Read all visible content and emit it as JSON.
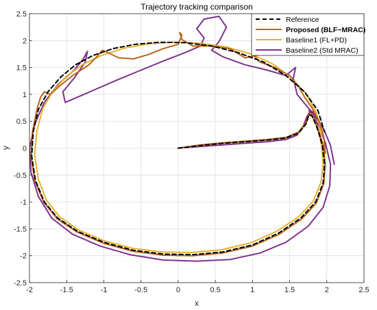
{
  "chart_data": {
    "type": "line",
    "title": "Trajectory tracking comparison",
    "xlabel": "x",
    "ylabel": "y",
    "xlim": [
      -2,
      2.5
    ],
    "ylim": [
      -2.5,
      2.5
    ],
    "xticks": [
      -2,
      -1.5,
      -1,
      -0.5,
      0,
      0.5,
      1,
      1.5,
      2,
      2.5
    ],
    "yticks": [
      -2.5,
      -2,
      -1.5,
      -1,
      -0.5,
      0,
      0.5,
      1,
      1.5,
      2,
      2.5
    ],
    "xtick_labels": [
      "-2",
      "-1.5",
      "-1",
      "-0.5",
      "0",
      "0.5",
      "1",
      "1.5",
      "2",
      "2.5"
    ],
    "ytick_labels": [
      "-2.5",
      "-2",
      "-1.5",
      "-1",
      "-0.5",
      "0",
      "0.5",
      "1",
      "1.5",
      "2",
      "2.5"
    ],
    "grid": true,
    "legend_position": "top-right",
    "series": [
      {
        "name": "Reference",
        "color": "#000000",
        "dashed": true,
        "x": [
          0,
          0.3,
          0.6,
          0.9,
          1.2,
          1.45,
          1.62,
          1.72,
          1.76,
          1.8,
          1.85,
          1.9,
          1.94,
          1.97,
          1.95,
          1.85,
          1.65,
          1.35,
          1.0,
          0.6,
          0.2,
          -0.2,
          -0.6,
          -1.0,
          -1.35,
          -1.62,
          -1.8,
          -1.92,
          -1.97,
          -1.95,
          -1.88,
          -1.75,
          -1.58,
          -1.38,
          -1.15,
          -0.88,
          -0.58,
          -0.25,
          0.1,
          0.45,
          0.8,
          1.15,
          1.45,
          1.7,
          1.88,
          1.97
        ],
        "y": [
          0,
          0.05,
          0.09,
          0.12,
          0.15,
          0.19,
          0.28,
          0.45,
          0.62,
          0.6,
          0.45,
          0.25,
          0.05,
          -0.3,
          -0.65,
          -1.0,
          -1.3,
          -1.58,
          -1.8,
          -1.93,
          -1.98,
          -1.97,
          -1.9,
          -1.75,
          -1.55,
          -1.3,
          -1.0,
          -0.6,
          -0.15,
          0.3,
          0.72,
          1.05,
          1.32,
          1.55,
          1.72,
          1.85,
          1.93,
          1.97,
          1.96,
          1.9,
          1.78,
          1.6,
          1.35,
          1.05,
          0.7,
          0.3
        ]
      },
      {
        "name": "Proposed (BLF−MRAC)",
        "color": "#B8651B",
        "dashed": false,
        "x": [
          0,
          0.3,
          0.6,
          0.9,
          1.2,
          1.45,
          1.62,
          1.72,
          1.77,
          1.81,
          1.86,
          1.91,
          1.95,
          1.98,
          1.96,
          1.86,
          1.66,
          1.36,
          1.0,
          0.6,
          0.2,
          -0.2,
          -0.6,
          -1.0,
          -1.36,
          -1.63,
          -1.81,
          -1.93,
          -1.98,
          -1.96,
          -1.9,
          -1.85,
          -1.8,
          -1.72,
          -1.6,
          -1.42,
          -1.2,
          -1.08,
          -1.02,
          -0.95,
          -0.8,
          -0.6,
          -0.4,
          -0.2,
          0.0,
          0.05,
          0.02,
          0.05,
          0.2,
          0.45,
          0.7,
          0.9,
          1.05,
          1.05,
          1.0,
          1.1,
          1.3,
          1.5,
          1.62,
          1.7,
          1.8,
          1.9,
          1.96,
          1.98
        ],
        "y": [
          0,
          0.06,
          0.1,
          0.13,
          0.16,
          0.2,
          0.3,
          0.48,
          0.65,
          0.62,
          0.46,
          0.25,
          0.05,
          -0.3,
          -0.66,
          -1.02,
          -1.32,
          -1.6,
          -1.82,
          -1.95,
          -2.0,
          -1.99,
          -1.92,
          -1.77,
          -1.56,
          -1.31,
          -1.0,
          -0.6,
          -0.15,
          0.3,
          0.72,
          0.95,
          1.05,
          1.0,
          1.15,
          1.35,
          1.55,
          1.72,
          1.82,
          1.78,
          1.68,
          1.66,
          1.74,
          1.85,
          1.93,
          2.1,
          2.15,
          2.02,
          1.9,
          1.9,
          1.85,
          1.68,
          1.72,
          1.88,
          1.75,
          1.6,
          1.5,
          1.35,
          1.15,
          0.95,
          0.75,
          0.5,
          0.2,
          -0.1
        ]
      },
      {
        "name": "Baseline1 (FL+PD)",
        "color": "#E3B22B",
        "dashed": false,
        "x": [
          0,
          0.3,
          0.6,
          0.9,
          1.2,
          1.45,
          1.62,
          1.72,
          1.76,
          1.8,
          1.85,
          1.9,
          1.93,
          1.95,
          1.92,
          1.82,
          1.62,
          1.32,
          0.98,
          0.58,
          0.18,
          -0.22,
          -0.62,
          -1.0,
          -1.34,
          -1.6,
          -1.77,
          -1.88,
          -1.93,
          -1.9,
          -1.82,
          -1.68,
          -1.5,
          -1.28,
          -1.02,
          -0.72,
          -0.4,
          -0.05,
          0.3,
          0.65,
          0.98,
          1.28,
          1.52,
          1.72,
          1.86,
          1.93
        ],
        "y": [
          0,
          0.05,
          0.09,
          0.12,
          0.15,
          0.19,
          0.28,
          0.45,
          0.62,
          0.6,
          0.45,
          0.25,
          0.05,
          -0.3,
          -0.64,
          -0.98,
          -1.28,
          -1.55,
          -1.76,
          -1.89,
          -1.94,
          -1.93,
          -1.86,
          -1.72,
          -1.52,
          -1.27,
          -0.97,
          -0.58,
          -0.13,
          0.32,
          0.74,
          1.07,
          1.34,
          1.56,
          1.73,
          1.86,
          1.94,
          1.97,
          1.95,
          1.88,
          1.75,
          1.56,
          1.31,
          1.01,
          0.66,
          0.26
        ]
      },
      {
        "name": "Baseline2 (Std MRAC)",
        "color": "#7E2F8E",
        "dashed": false,
        "x": [
          0,
          0.3,
          0.6,
          0.9,
          1.2,
          1.45,
          1.6,
          1.68,
          1.73,
          1.78,
          1.84,
          1.82,
          1.76,
          1.82,
          1.9,
          1.98,
          2.05,
          2.04,
          1.95,
          1.75,
          1.45,
          1.1,
          0.7,
          0.25,
          -0.2,
          -0.65,
          -1.05,
          -1.42,
          -1.7,
          -1.88,
          -1.98,
          -2.0,
          -1.93,
          -1.8,
          -1.62,
          -1.4,
          -1.28,
          -1.22,
          -1.25,
          -1.4,
          -1.55,
          -1.52,
          -1.35,
          -1.1,
          -0.8,
          -0.5,
          -0.2,
          0.1,
          0.3,
          0.35,
          0.25,
          0.35,
          0.55,
          0.65,
          0.55,
          0.45,
          0.6,
          0.9,
          1.2,
          1.45,
          1.58,
          1.55,
          1.6,
          1.72,
          1.84,
          1.96,
          2.05,
          2.1
        ],
        "y": [
          0,
          0.03,
          0.06,
          0.09,
          0.12,
          0.16,
          0.24,
          0.4,
          0.58,
          0.7,
          0.65,
          0.55,
          0.7,
          0.6,
          0.4,
          0.1,
          -0.3,
          -0.7,
          -1.1,
          -1.45,
          -1.75,
          -1.95,
          -2.07,
          -2.1,
          -2.08,
          -1.98,
          -1.82,
          -1.6,
          -1.3,
          -0.9,
          -0.45,
          0.0,
          0.45,
          0.85,
          1.18,
          1.45,
          1.65,
          1.8,
          1.6,
          1.3,
          1.05,
          0.85,
          0.95,
          1.1,
          1.28,
          1.45,
          1.62,
          1.78,
          1.9,
          2.05,
          2.22,
          2.4,
          2.45,
          2.25,
          1.98,
          1.82,
          1.7,
          1.55,
          1.45,
          1.35,
          1.5,
          1.3,
          1.0,
          0.8,
          0.6,
          0.35,
          0.05,
          -0.3
        ]
      }
    ]
  }
}
